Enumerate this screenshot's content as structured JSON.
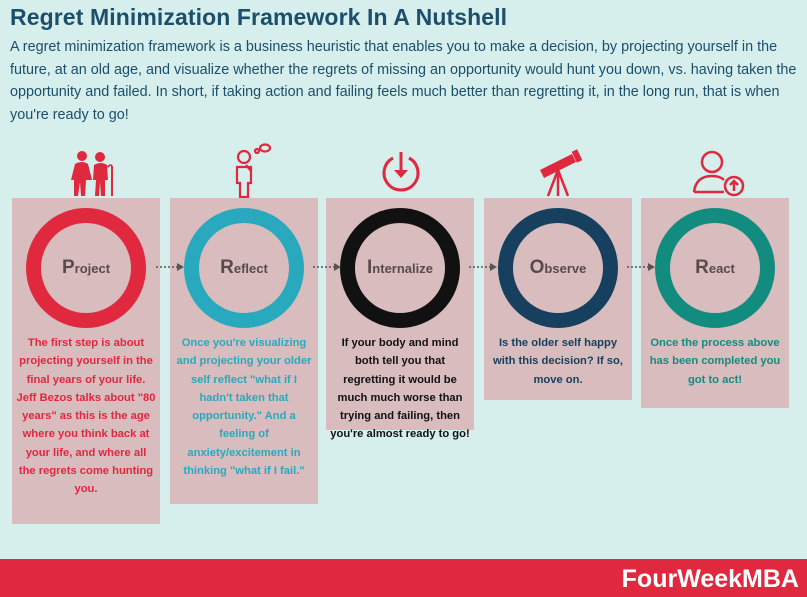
{
  "header": {
    "title": "Regret Minimization Framework In A Nutshell",
    "intro": "A regret minimization framework is a business heuristic that enables you to make a decision, by projecting yourself in the future, at an old age, and visualize whether the regrets of missing an opportunity would hunt you down, vs. having taken the opportunity and failed. In short, if taking action and failing feels much better than regretting it, in the long run, that is when you're ready to go!"
  },
  "steps": [
    {
      "label": "Project",
      "icon": "elderly-couple-icon",
      "ring_color": "#e0283f",
      "text_color": "#e0283f",
      "text": "The first step is about projecting yourself in the final years of your life. Jeff Bezos talks about \"80 years\" as this is the age where you think back at your life, and where all the regrets come hunting you."
    },
    {
      "label": "Reflect",
      "icon": "thinking-person-icon",
      "ring_color": "#29a9bd",
      "text_color": "#29a9bd",
      "text": "Once you're visualizing and projecting your older self reflect \"what if I hadn't taken that opportunity.\" And a feeling of anxiety/excitement in thinking \"what if I fail.\""
    },
    {
      "label": "Internalize",
      "icon": "download-circle-icon",
      "ring_color": "#111111",
      "text_color": "#111111",
      "text": "If your body and mind both tell you that regretting it would be much much worse than trying and failing, then you're almost ready to go!"
    },
    {
      "label": "Observe",
      "icon": "telescope-icon",
      "ring_color": "#17405e",
      "text_color": "#17405e",
      "text": "Is the older self happy with this decision? If so, move on."
    },
    {
      "label": "React",
      "icon": "user-upload-icon",
      "ring_color": "#138c80",
      "text_color": "#138c80",
      "text": "Once the process above has been completed you got to act!"
    }
  ],
  "footer": {
    "brand": "FourWeekMBA"
  }
}
